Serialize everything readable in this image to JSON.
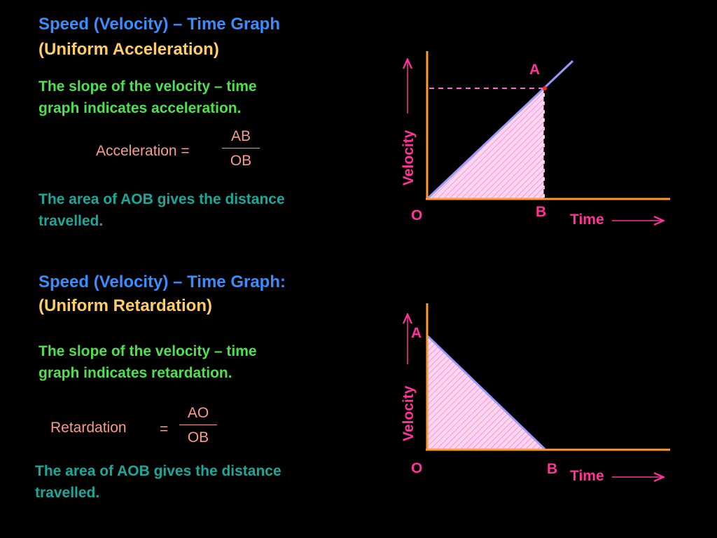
{
  "section1": {
    "title_line1": "Speed (Velocity) – Time Graph",
    "title_line2": "(Uniform Acceleration)",
    "slope_line1": "The slope of the velocity – time",
    "slope_line2": "graph indicates acceleration.",
    "formula_label": "Acceleration =",
    "formula_num": "AB",
    "formula_den": "OB",
    "area_line1": "The area of AOB gives the distance",
    "area_line2": "travelled."
  },
  "section2": {
    "title_line1": "Speed (Velocity) – Time Graph:",
    "title_line2": "(Uniform Retardation)",
    "slope_line1": "The slope of the velocity – time",
    "slope_line2": "graph indicates retardation.",
    "formula_label": "Retardation",
    "formula_eq": "=",
    "formula_num": "AO",
    "formula_den": "OB",
    "area_line1": "The area of AOB gives the distance",
    "area_line2": "travelled."
  },
  "graph1": {
    "y_axis_label": "Velocity",
    "x_axis_label": "Time",
    "origin_label": "O",
    "point_a_label": "A",
    "point_b_label": "B"
  },
  "graph2": {
    "y_axis_label": "Velocity",
    "x_axis_label": "Time",
    "origin_label": "O",
    "point_a_label": "A",
    "point_b_label": "B"
  },
  "colors": {
    "background": "#000000",
    "heading_blue": "#3b8cff",
    "heading_yellow": "#ffcc66",
    "text_green": "#4fe04f",
    "text_teal": "#1aa89a",
    "formula_pink": "#f79c8c",
    "axis_orange": "#ff9933",
    "label_magenta": "#ff3399",
    "graph_line": "#9999ff",
    "fill_pink": "#ffccee"
  }
}
